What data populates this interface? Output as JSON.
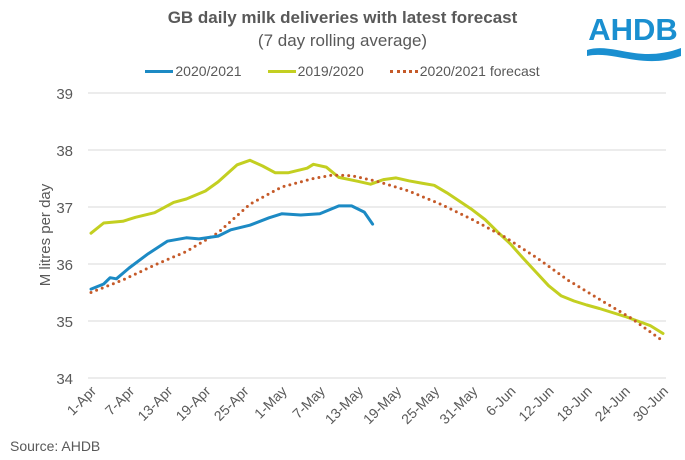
{
  "brand": {
    "logo_text": "AHDB",
    "logo_color": "#1a8fd0"
  },
  "source": "Source: AHDB",
  "chart_data": {
    "type": "line",
    "title": "GB daily milk deliveries with latest forecast",
    "subtitle": "(7 day rolling average)",
    "xlabel": "",
    "ylabel": "M litres per day",
    "ylim": [
      34,
      39
    ],
    "yticks": [
      34,
      35,
      36,
      37,
      38,
      39
    ],
    "xlim_days": [
      0,
      90
    ],
    "x_unit": "days since 1-Apr",
    "xtick_labels": [
      "1-Apr",
      "7-Apr",
      "13-Apr",
      "19-Apr",
      "25-Apr",
      "1-May",
      "7-May",
      "13-May",
      "19-May",
      "25-May",
      "31-May",
      "6-Jun",
      "12-Jun",
      "18-Jun",
      "24-Jun",
      "30-Jun"
    ],
    "xtick_days": [
      0,
      6,
      12,
      18,
      24,
      30,
      36,
      42,
      48,
      54,
      60,
      66,
      72,
      78,
      84,
      90
    ],
    "grid": true,
    "legend_position": "top",
    "series": [
      {
        "name": "2020/2021",
        "style": "solid",
        "color": "#1c8ac4",
        "x": [
          0,
          2,
          3,
          4,
          6,
          9,
          12,
          15,
          17,
          20,
          22,
          25,
          28,
          30,
          33,
          36,
          39,
          41,
          43,
          44.3
        ],
        "values": [
          35.56,
          35.65,
          35.76,
          35.74,
          35.93,
          36.18,
          36.4,
          36.46,
          36.44,
          36.49,
          36.6,
          36.68,
          36.81,
          36.88,
          36.86,
          36.88,
          37.02,
          37.02,
          36.91,
          36.7
        ]
      },
      {
        "name": "2019/2020",
        "style": "solid",
        "color": "#c3cf21",
        "x": [
          0,
          2,
          5,
          7,
          10,
          13,
          15,
          18,
          20,
          23,
          25,
          27,
          29,
          31,
          34,
          35,
          37,
          39,
          42,
          44,
          46,
          48,
          50,
          52,
          54,
          56,
          58,
          60,
          62,
          64,
          66,
          68,
          70,
          72,
          74,
          76,
          78,
          80,
          82,
          84,
          86,
          88,
          90
        ],
        "values": [
          36.54,
          36.72,
          36.75,
          36.82,
          36.9,
          37.08,
          37.14,
          37.28,
          37.44,
          37.74,
          37.82,
          37.72,
          37.6,
          37.6,
          37.68,
          37.75,
          37.7,
          37.52,
          37.45,
          37.4,
          37.48,
          37.51,
          37.46,
          37.42,
          37.38,
          37.25,
          37.1,
          36.95,
          36.78,
          36.56,
          36.35,
          36.1,
          35.86,
          35.62,
          35.44,
          35.35,
          35.28,
          35.22,
          35.15,
          35.08,
          35.0,
          34.92,
          34.78
        ]
      },
      {
        "name": "2020/2021 forecast",
        "style": "dotted",
        "color": "#c55a29",
        "x": [
          0,
          5,
          10,
          15,
          20,
          25,
          30,
          35,
          38,
          41,
          45,
          50,
          55,
          60,
          65,
          70,
          75,
          80,
          85,
          90
        ],
        "values": [
          35.5,
          35.72,
          35.98,
          36.22,
          36.55,
          37.05,
          37.35,
          37.5,
          37.56,
          37.55,
          37.45,
          37.28,
          37.05,
          36.78,
          36.48,
          36.12,
          35.72,
          35.38,
          35.05,
          34.65
        ]
      }
    ]
  }
}
